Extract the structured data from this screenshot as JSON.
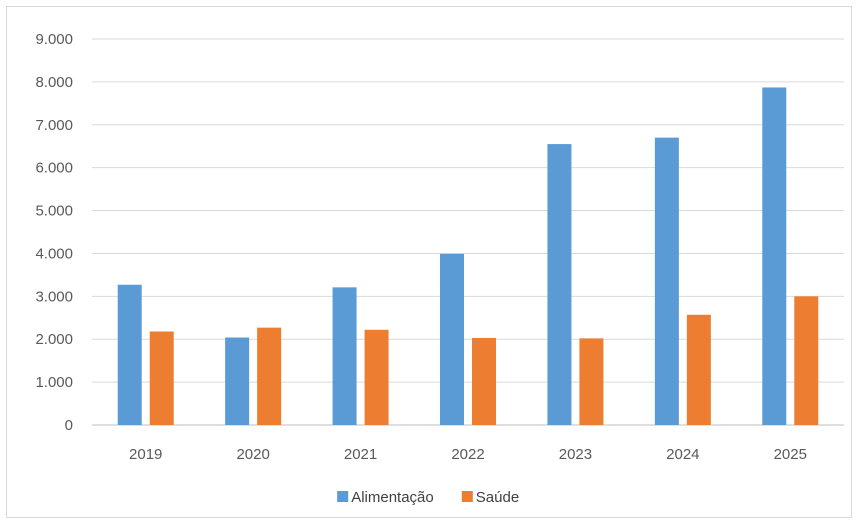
{
  "chart_data": {
    "type": "bar",
    "categories": [
      "2019",
      "2020",
      "2021",
      "2022",
      "2023",
      "2024",
      "2025"
    ],
    "series": [
      {
        "name": "Alimentação",
        "color": "#5b9bd5",
        "values": [
          3270,
          2040,
          3210,
          3990,
          6550,
          6700,
          7870
        ]
      },
      {
        "name": "Saúde",
        "color": "#ed7d31",
        "values": [
          2180,
          2270,
          2220,
          2030,
          2020,
          2570,
          3000
        ]
      }
    ],
    "ylim": [
      0,
      9000
    ],
    "yticks": [
      {
        "value": 0,
        "label": "0"
      },
      {
        "value": 1000,
        "label": "1.000"
      },
      {
        "value": 2000,
        "label": "2.000"
      },
      {
        "value": 3000,
        "label": "3.000"
      },
      {
        "value": 4000,
        "label": "4.000"
      },
      {
        "value": 5000,
        "label": "5.000"
      },
      {
        "value": 6000,
        "label": "6.000"
      },
      {
        "value": 7000,
        "label": "7.000"
      },
      {
        "value": 8000,
        "label": "8.000"
      },
      {
        "value": 9000,
        "label": "9.000"
      }
    ],
    "grid": true,
    "legend": "bottom",
    "title": "",
    "xlabel": "",
    "ylabel": ""
  }
}
